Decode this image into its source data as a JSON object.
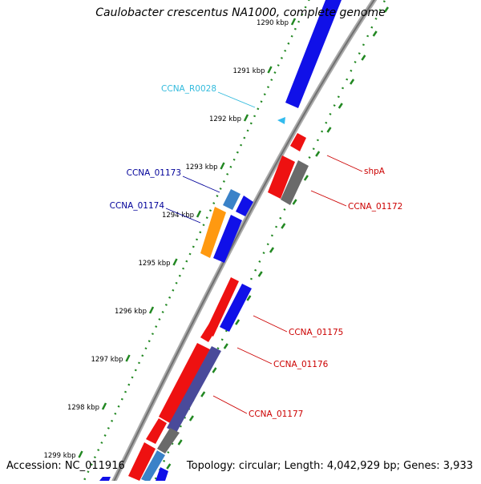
{
  "title": "Caulobacter crescentus NA1000, complete genome",
  "footer": {
    "accession": "Accession: NC_011916",
    "summary": "Topology: circular; Length: 4,042,929 bp; Genes: 3,933"
  },
  "ticks": [
    {
      "label": "1290 kbp",
      "kbp": 1290
    },
    {
      "label": "1291 kbp",
      "kbp": 1291
    },
    {
      "label": "1292 kbp",
      "kbp": 1292
    },
    {
      "label": "1293 kbp",
      "kbp": 1293
    },
    {
      "label": "1294 kbp",
      "kbp": 1294
    },
    {
      "label": "1295 kbp",
      "kbp": 1295
    },
    {
      "label": "1296 kbp",
      "kbp": 1296
    },
    {
      "label": "1297 kbp",
      "kbp": 1297
    },
    {
      "label": "1298 kbp",
      "kbp": 1298
    },
    {
      "label": "1299 kbp",
      "kbp": 1299
    }
  ],
  "colors": {
    "forward_cds": "#1010e8",
    "reverse_cds": "#ee1111",
    "gray_feature": "#6a6a6a",
    "orange_feature": "#ff9910",
    "steelblue_feature": "#3a82c8",
    "slate_feature": "#4a4a9a",
    "rna": "#33bbee",
    "backbone": "#8c8c8c",
    "tick_marks": "#228822",
    "label_red": "#cc0000",
    "label_blue": "#000099",
    "label_cyan": "#33bbdd"
  },
  "labels": [
    {
      "text": "CCNA_R0028",
      "color": "label_cyan"
    },
    {
      "text": "CCNA_01173",
      "color": "label_blue"
    },
    {
      "text": "CCNA_01174",
      "color": "label_blue"
    },
    {
      "text": "shpA",
      "color": "label_red"
    },
    {
      "text": "CCNA_01172",
      "color": "label_red"
    },
    {
      "text": "CCNA_01175",
      "color": "label_red"
    },
    {
      "text": "CCNA_01176",
      "color": "label_red"
    },
    {
      "text": "CCNA_01177",
      "color": "label_red"
    }
  ]
}
